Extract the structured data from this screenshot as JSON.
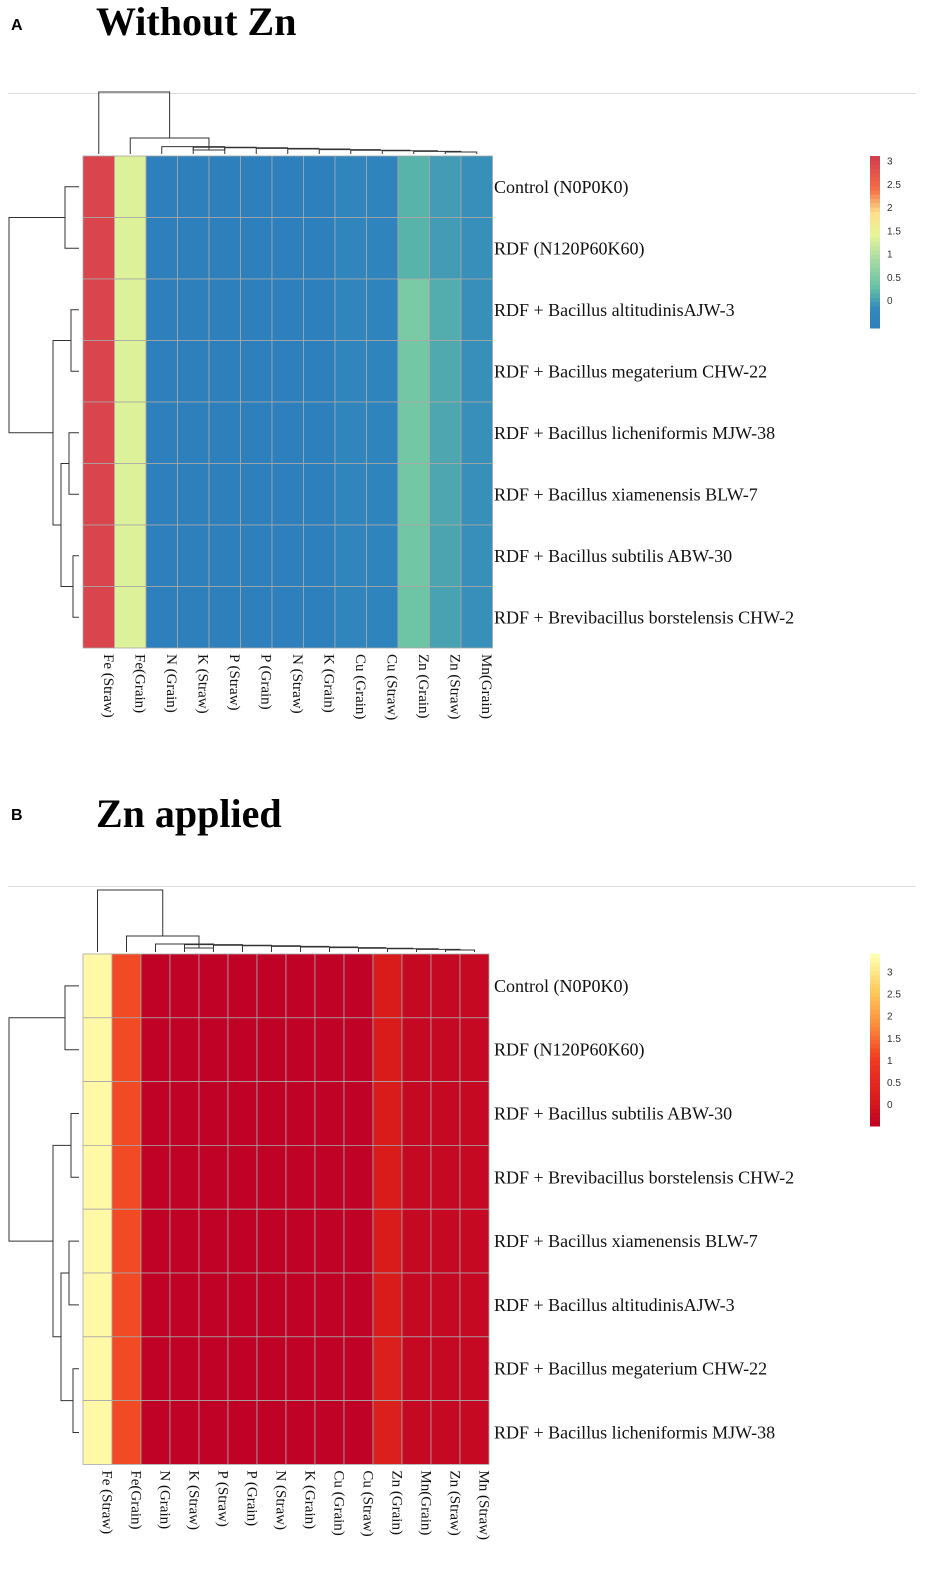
{
  "figure": {
    "panel_a_letter": "A",
    "panel_a_title": "Without Zn",
    "panel_b_letter": "B",
    "panel_b_title": "Zn applied"
  },
  "chart_data": [
    {
      "type": "heatmap",
      "title": "Without Zn",
      "rows": [
        "Control (N0P0K0)",
        "RDF (N120P60K60)",
        "RDF + Bacillus altitudinisAJW-3",
        "RDF + Bacillus megaterium CHW-22",
        "RDF + Bacillus licheniformis MJW-38",
        "RDF + Bacillus xiamenensis BLW-7",
        "RDF + Bacillus subtilis ABW-30",
        "RDF + Brevibacillus borstelensis CHW-2"
      ],
      "columns": [
        "Fe (Straw)",
        "Fe(Grain)",
        "N (Grain)",
        "K (Straw)",
        "P (Straw)",
        "P (Grain)",
        "N (Straw)",
        "K (Grain)",
        "Cu (Grain)",
        "Cu (Straw)",
        "Zn (Grain)",
        "Zn (Straw)",
        "Mn(Grain)"
      ],
      "values": [
        [
          3.0,
          1.35,
          -0.55,
          -0.55,
          -0.55,
          -0.55,
          -0.55,
          -0.55,
          -0.3,
          -0.35,
          0.2,
          0.0,
          -0.1
        ],
        [
          3.0,
          1.35,
          -0.55,
          -0.55,
          -0.55,
          -0.55,
          -0.55,
          -0.55,
          -0.3,
          -0.35,
          0.2,
          0.0,
          -0.1
        ],
        [
          3.0,
          1.35,
          -0.55,
          -0.55,
          -0.55,
          -0.55,
          -0.55,
          -0.55,
          -0.3,
          -0.35,
          0.5,
          0.15,
          -0.1
        ],
        [
          3.0,
          1.35,
          -0.55,
          -0.55,
          -0.55,
          -0.55,
          -0.55,
          -0.55,
          -0.3,
          -0.35,
          0.45,
          0.12,
          -0.1
        ],
        [
          3.0,
          1.35,
          -0.55,
          -0.55,
          -0.55,
          -0.55,
          -0.55,
          -0.55,
          -0.3,
          -0.35,
          0.45,
          0.1,
          -0.1
        ],
        [
          3.0,
          1.35,
          -0.55,
          -0.55,
          -0.55,
          -0.55,
          -0.55,
          -0.55,
          -0.3,
          -0.35,
          0.45,
          0.1,
          -0.1
        ],
        [
          3.0,
          1.35,
          -0.55,
          -0.55,
          -0.55,
          -0.55,
          -0.55,
          -0.55,
          -0.3,
          -0.35,
          0.42,
          0.08,
          -0.1
        ],
        [
          3.0,
          1.35,
          -0.55,
          -0.55,
          -0.55,
          -0.55,
          -0.55,
          -0.55,
          -0.3,
          -0.35,
          0.4,
          0.06,
          -0.1
        ]
      ],
      "legend": {
        "ticks": [
          "3",
          "2.5",
          "2",
          "1.5",
          "1",
          "0.5",
          "0"
        ],
        "min": -0.6,
        "max": 3.1,
        "palette": "blue-yellow-red"
      }
    },
    {
      "type": "heatmap",
      "title": "Zn applied",
      "rows": [
        "Control (N0P0K0)",
        "RDF (N120P60K60)",
        "RDF + Bacillus subtilis ABW-30",
        "RDF + Brevibacillus borstelensis CHW-2",
        "RDF + Bacillus xiamenensis BLW-7",
        "RDF + Bacillus altitudinisAJW-3",
        "RDF + Bacillus megaterium CHW-22",
        "RDF + Bacillus licheniformis MJW-38"
      ],
      "columns": [
        "Fe (Straw)",
        "Fe(Grain)",
        "N (Grain)",
        "K (Straw)",
        "P (Straw)",
        "P (Grain)",
        "N (Straw)",
        "K (Grain)",
        "Cu (Grain)",
        "Cu (Straw)",
        "Zn (Grain)",
        "Mn(Grain)",
        "Zn (Straw)",
        "Mn (Straw)"
      ],
      "values": [
        [
          3.3,
          1.2,
          -0.45,
          -0.45,
          -0.45,
          -0.45,
          -0.45,
          -0.45,
          -0.45,
          -0.45,
          0.15,
          -0.3,
          -0.3,
          -0.3
        ],
        [
          3.3,
          1.2,
          -0.45,
          -0.45,
          -0.45,
          -0.45,
          -0.45,
          -0.45,
          -0.45,
          -0.45,
          0.15,
          -0.3,
          -0.3,
          -0.3
        ],
        [
          3.3,
          1.2,
          -0.45,
          -0.45,
          -0.45,
          -0.45,
          -0.45,
          -0.45,
          -0.45,
          -0.45,
          0.15,
          -0.3,
          -0.3,
          -0.3
        ],
        [
          3.3,
          1.2,
          -0.45,
          -0.45,
          -0.45,
          -0.45,
          -0.45,
          -0.45,
          -0.45,
          -0.45,
          0.15,
          -0.3,
          -0.3,
          -0.3
        ],
        [
          3.3,
          1.2,
          -0.45,
          -0.45,
          -0.45,
          -0.45,
          -0.45,
          -0.45,
          -0.45,
          -0.45,
          0.15,
          -0.3,
          -0.3,
          -0.3
        ],
        [
          3.3,
          1.2,
          -0.45,
          -0.45,
          -0.45,
          -0.45,
          -0.45,
          -0.45,
          -0.45,
          -0.45,
          0.15,
          -0.3,
          -0.3,
          -0.3
        ],
        [
          3.3,
          1.2,
          -0.45,
          -0.45,
          -0.45,
          -0.45,
          -0.45,
          -0.45,
          -0.45,
          -0.45,
          0.25,
          -0.3,
          -0.3,
          -0.3
        ],
        [
          3.3,
          1.2,
          -0.45,
          -0.45,
          -0.45,
          -0.45,
          -0.45,
          -0.45,
          -0.45,
          -0.45,
          0.25,
          -0.3,
          -0.3,
          -0.3
        ]
      ],
      "legend": {
        "ticks": [
          "3",
          "2.5",
          "2",
          "1.5",
          "1",
          "0.5",
          "0"
        ],
        "min": -0.5,
        "max": 3.4,
        "palette": "red-yellow"
      }
    }
  ]
}
